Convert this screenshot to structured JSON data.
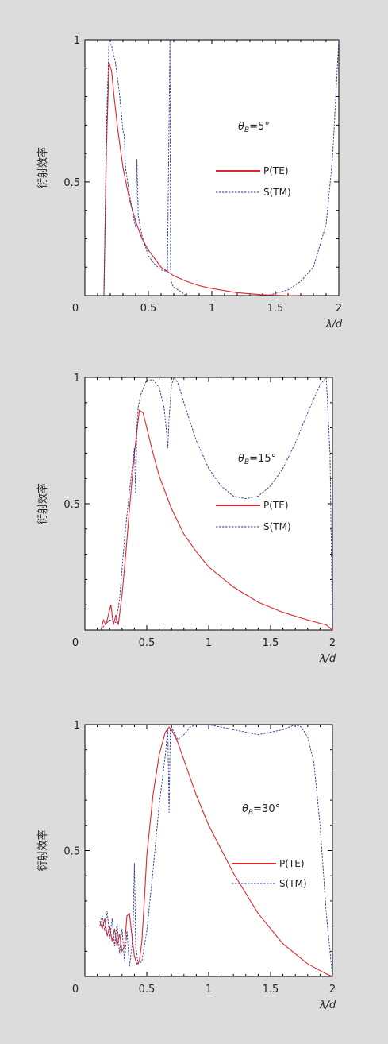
{
  "figure": {
    "background": "#dcdcdc",
    "te_color": "#e0262e",
    "tm_color": "#2b3a8f"
  },
  "chart_data": [
    {
      "type": "line",
      "title": "",
      "annotation": "θB=5°",
      "annotation_main": "θ",
      "annotation_sub": "B",
      "annotation_rest": "=5°",
      "xlabel": "λ/d",
      "ylabel": "衍射效率",
      "xlim": [
        0,
        2
      ],
      "ylim": [
        0.1,
        1
      ],
      "xticks": [
        0,
        0.5,
        1,
        1.5,
        2
      ],
      "xtick_labels": [
        "0",
        "0.5",
        "1",
        "1.5",
        "2"
      ],
      "yticks": [
        0.5,
        1
      ],
      "ytick_labels": [
        "0.5",
        "1"
      ],
      "legend_placement": "right",
      "series": [
        {
          "name": "P(TE)",
          "style": "solid",
          "x": [
            0.15,
            0.17,
            0.19,
            0.21,
            0.23,
            0.26,
            0.3,
            0.35,
            0.4,
            0.45,
            0.5,
            0.55,
            0.6,
            0.65,
            0.7,
            0.8,
            0.9,
            1.0,
            1.2,
            1.4,
            1.6,
            1.8,
            2.0
          ],
          "y": [
            0.1,
            0.62,
            0.92,
            0.89,
            0.8,
            0.68,
            0.55,
            0.44,
            0.36,
            0.3,
            0.26,
            0.23,
            0.2,
            0.185,
            0.17,
            0.15,
            0.135,
            0.125,
            0.11,
            0.103,
            0.1,
            0.098,
            0.097
          ]
        },
        {
          "name": "S(TM)",
          "style": "dashed",
          "x": [
            0.15,
            0.17,
            0.19,
            0.21,
            0.24,
            0.27,
            0.3,
            0.31,
            0.32,
            0.35,
            0.38,
            0.4,
            0.41,
            0.42,
            0.45,
            0.5,
            0.55,
            0.6,
            0.65,
            0.67,
            0.675,
            0.68,
            0.685,
            0.7,
            0.8,
            1.0,
            1.2,
            1.4,
            1.6,
            1.7,
            1.8,
            1.9,
            1.95,
            2.0
          ],
          "y": [
            0.1,
            0.7,
            0.99,
            0.98,
            0.92,
            0.82,
            0.68,
            0.66,
            0.55,
            0.46,
            0.38,
            0.34,
            0.58,
            0.38,
            0.31,
            0.24,
            0.21,
            0.19,
            0.185,
            1.0,
            0.2,
            0.15,
            0.14,
            0.13,
            0.1,
            0.09,
            0.09,
            0.095,
            0.12,
            0.15,
            0.2,
            0.35,
            0.58,
            1.0
          ]
        }
      ]
    },
    {
      "type": "line",
      "title": "",
      "annotation": "θB=15°",
      "annotation_main": "θ",
      "annotation_sub": "B",
      "annotation_rest": "=15°",
      "xlabel": "λ/d",
      "ylabel": "衍射效率",
      "xlim": [
        0,
        2
      ],
      "ylim": [
        0,
        1
      ],
      "xticks": [
        0,
        0.5,
        1,
        1.5,
        2
      ],
      "xtick_labels": [
        "0",
        "0.5",
        "1",
        "1.5",
        "2"
      ],
      "yticks": [
        0.5,
        1
      ],
      "ytick_labels": [
        "0.5",
        "1"
      ],
      "legend_placement": "right",
      "series": [
        {
          "name": "P(TE)",
          "style": "solid",
          "x": [
            0.13,
            0.15,
            0.17,
            0.19,
            0.21,
            0.23,
            0.25,
            0.27,
            0.3,
            0.33,
            0.36,
            0.4,
            0.44,
            0.47,
            0.5,
            0.55,
            0.6,
            0.7,
            0.8,
            0.9,
            1.0,
            1.2,
            1.4,
            1.6,
            1.8,
            1.95,
            2.0
          ],
          "y": [
            0.0,
            0.04,
            0.02,
            0.06,
            0.1,
            0.02,
            0.06,
            0.02,
            0.14,
            0.3,
            0.48,
            0.7,
            0.87,
            0.86,
            0.8,
            0.7,
            0.61,
            0.48,
            0.38,
            0.31,
            0.25,
            0.17,
            0.11,
            0.07,
            0.04,
            0.02,
            0.0
          ]
        },
        {
          "name": "S(TM)",
          "style": "dashed",
          "x": [
            0.13,
            0.16,
            0.2,
            0.25,
            0.28,
            0.32,
            0.36,
            0.4,
            0.41,
            0.42,
            0.43,
            0.45,
            0.5,
            0.55,
            0.6,
            0.64,
            0.66,
            0.67,
            0.68,
            0.7,
            0.72,
            0.75,
            0.8,
            0.9,
            1.0,
            1.1,
            1.2,
            1.3,
            1.4,
            1.5,
            1.6,
            1.7,
            1.8,
            1.9,
            1.95,
            1.98,
            2.0
          ],
          "y": [
            0.0,
            0.02,
            0.04,
            0.03,
            0.12,
            0.36,
            0.55,
            0.72,
            0.54,
            0.8,
            0.88,
            0.93,
            0.99,
            0.99,
            0.96,
            0.88,
            0.78,
            0.72,
            0.84,
            0.97,
            1.0,
            0.98,
            0.9,
            0.75,
            0.64,
            0.57,
            0.53,
            0.52,
            0.53,
            0.57,
            0.64,
            0.74,
            0.86,
            0.97,
            1.0,
            0.7,
            0.0
          ]
        }
      ]
    },
    {
      "type": "line",
      "title": "",
      "annotation": "θB=30°",
      "annotation_main": "θ",
      "annotation_sub": "B",
      "annotation_rest": "=30°",
      "xlabel": "λ/d",
      "ylabel": "衍射效率",
      "xlim": [
        0,
        2
      ],
      "ylim": [
        0,
        1
      ],
      "xticks": [
        0,
        0.5,
        1,
        1.5,
        2
      ],
      "xtick_labels": [
        "0",
        "0.5",
        "1",
        "1.5",
        "2"
      ],
      "yticks": [
        0.5,
        1
      ],
      "ytick_labels": [
        "0.5",
        "1"
      ],
      "legend_placement": "right",
      "series": [
        {
          "name": "P(TE)",
          "style": "solid",
          "x": [
            0.12,
            0.14,
            0.16,
            0.18,
            0.2,
            0.22,
            0.24,
            0.26,
            0.28,
            0.3,
            0.32,
            0.34,
            0.36,
            0.38,
            0.4,
            0.42,
            0.44,
            0.46,
            0.48,
            0.5,
            0.55,
            0.6,
            0.65,
            0.68,
            0.7,
            0.75,
            0.8,
            0.9,
            1.0,
            1.2,
            1.4,
            1.6,
            1.8,
            1.95,
            2.0
          ],
          "y": [
            0.22,
            0.19,
            0.23,
            0.16,
            0.2,
            0.14,
            0.19,
            0.12,
            0.17,
            0.1,
            0.12,
            0.24,
            0.25,
            0.16,
            0.08,
            0.05,
            0.06,
            0.14,
            0.3,
            0.48,
            0.72,
            0.88,
            0.97,
            0.99,
            0.98,
            0.93,
            0.86,
            0.72,
            0.6,
            0.41,
            0.25,
            0.13,
            0.05,
            0.01,
            0.0
          ]
        },
        {
          "name": "S(TM)",
          "style": "dashed",
          "x": [
            0.12,
            0.14,
            0.16,
            0.18,
            0.2,
            0.22,
            0.24,
            0.26,
            0.28,
            0.3,
            0.32,
            0.34,
            0.36,
            0.38,
            0.39,
            0.4,
            0.41,
            0.43,
            0.46,
            0.5,
            0.55,
            0.6,
            0.65,
            0.67,
            0.68,
            0.69,
            0.7,
            0.72,
            0.75,
            0.8,
            0.85,
            0.9,
            1.0,
            1.1,
            1.2,
            1.3,
            1.4,
            1.5,
            1.6,
            1.7,
            1.75,
            1.8,
            1.85,
            1.9,
            1.95,
            2.0
          ],
          "y": [
            0.2,
            0.24,
            0.18,
            0.26,
            0.15,
            0.23,
            0.12,
            0.21,
            0.09,
            0.19,
            0.06,
            0.18,
            0.04,
            0.12,
            0.2,
            0.45,
            0.12,
            0.05,
            0.06,
            0.18,
            0.42,
            0.68,
            0.88,
            0.98,
            0.65,
            0.98,
            0.99,
            0.97,
            0.94,
            0.96,
            0.99,
            1.0,
            1.0,
            0.99,
            0.98,
            0.97,
            0.96,
            0.97,
            0.98,
            1.0,
            0.99,
            0.95,
            0.85,
            0.6,
            0.25,
            0.0
          ]
        }
      ]
    }
  ]
}
